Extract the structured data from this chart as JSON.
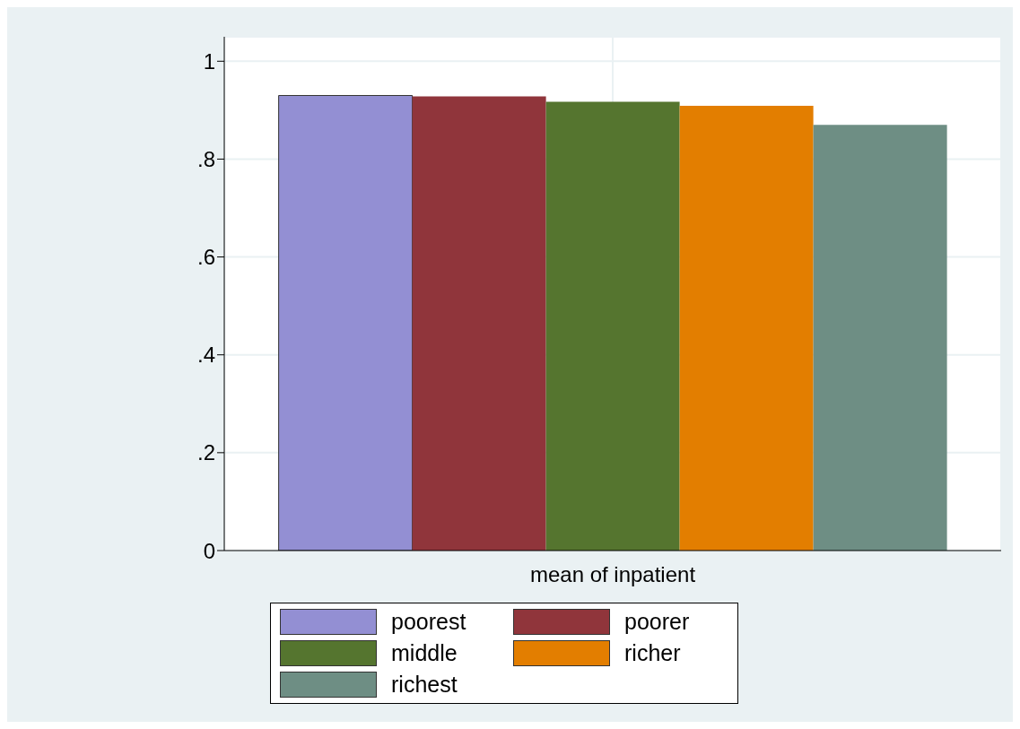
{
  "chart_data": {
    "type": "bar",
    "categories": [
      "mean of inpatient"
    ],
    "series": [
      {
        "name": "poorest",
        "color": "#938fd3",
        "values": [
          0.93
        ]
      },
      {
        "name": "poorer",
        "color": "#90353b",
        "values": [
          0.928
        ]
      },
      {
        "name": "middle",
        "color": "#55752f",
        "values": [
          0.917
        ]
      },
      {
        "name": "richer",
        "color": "#e37e00",
        "values": [
          0.909
        ]
      },
      {
        "name": "richest",
        "color": "#6e8e84",
        "values": [
          0.87
        ]
      }
    ],
    "ylim": [
      0,
      1.05
    ],
    "yticks": [
      {
        "value": 0,
        "label": "0"
      },
      {
        "value": 0.2,
        "label": ".2"
      },
      {
        "value": 0.4,
        "label": ".4"
      },
      {
        "value": 0.6,
        "label": ".6"
      },
      {
        "value": 0.8,
        "label": ".8"
      },
      {
        "value": 1,
        "label": "1"
      }
    ],
    "grid": true,
    "legend": "bottom"
  }
}
